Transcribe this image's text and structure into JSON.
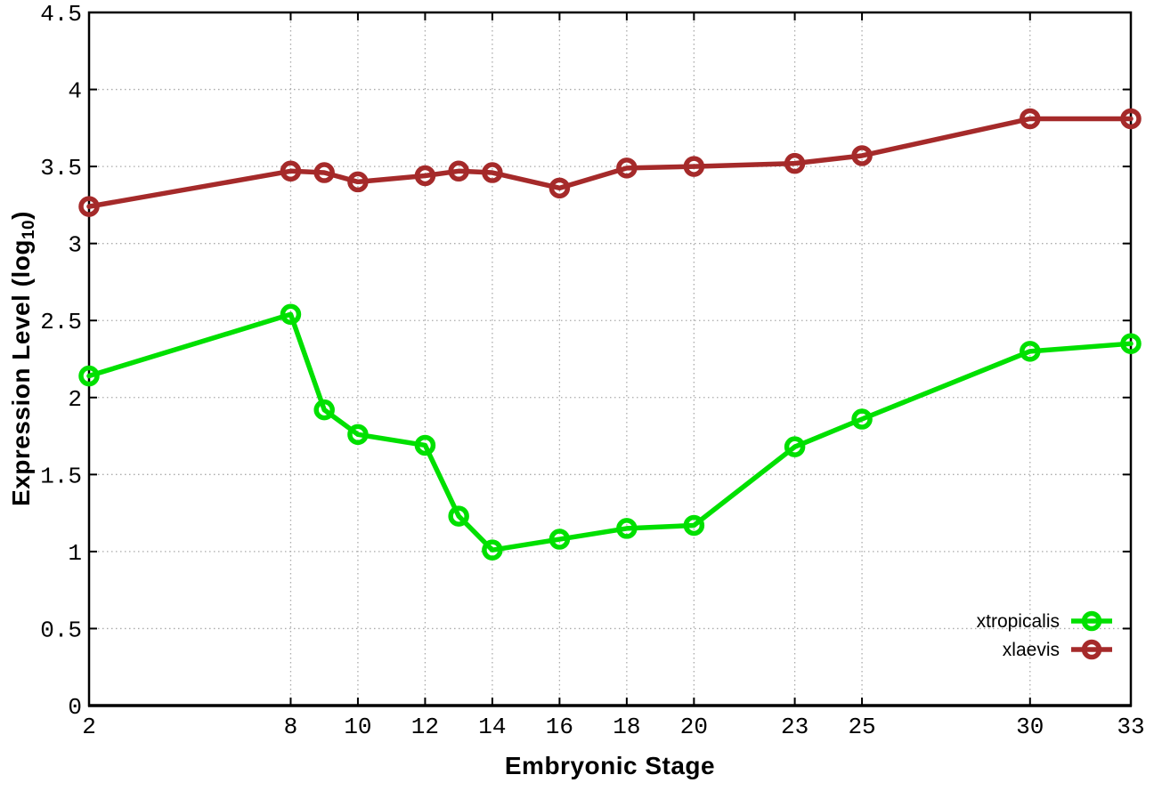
{
  "chart_data": {
    "type": "line",
    "title": "",
    "xlabel": "Embryonic Stage",
    "ylabel_main": "Expression Level (log",
    "ylabel_sub": "10",
    "ylabel_close": ")",
    "x": [
      2,
      8,
      9,
      10,
      12,
      13,
      14,
      16,
      18,
      20,
      23,
      25,
      30,
      33
    ],
    "series": [
      {
        "name": "xtropicalis",
        "color": "#00e000",
        "values": [
          2.14,
          2.54,
          1.92,
          1.76,
          1.69,
          1.23,
          1.01,
          1.08,
          1.15,
          1.17,
          1.68,
          1.86,
          2.3,
          2.35
        ]
      },
      {
        "name": "xlaevis",
        "color": "#a52a2a",
        "values": [
          3.24,
          3.47,
          3.46,
          3.4,
          3.44,
          3.47,
          3.46,
          3.36,
          3.49,
          3.5,
          3.52,
          3.57,
          3.81,
          3.81
        ]
      }
    ],
    "xlim": [
      2,
      33
    ],
    "ylim": [
      0,
      4.5
    ],
    "xticks": [
      2,
      8,
      10,
      12,
      14,
      16,
      18,
      20,
      23,
      25,
      30,
      33
    ],
    "yticks": [
      0,
      0.5,
      1,
      1.5,
      2,
      2.5,
      3,
      3.5,
      4,
      4.5
    ],
    "grid": true,
    "grid_color": "#aaaaaa",
    "axis_color": "#000000",
    "marker": "open-circle",
    "legend_position": "bottom-right"
  }
}
